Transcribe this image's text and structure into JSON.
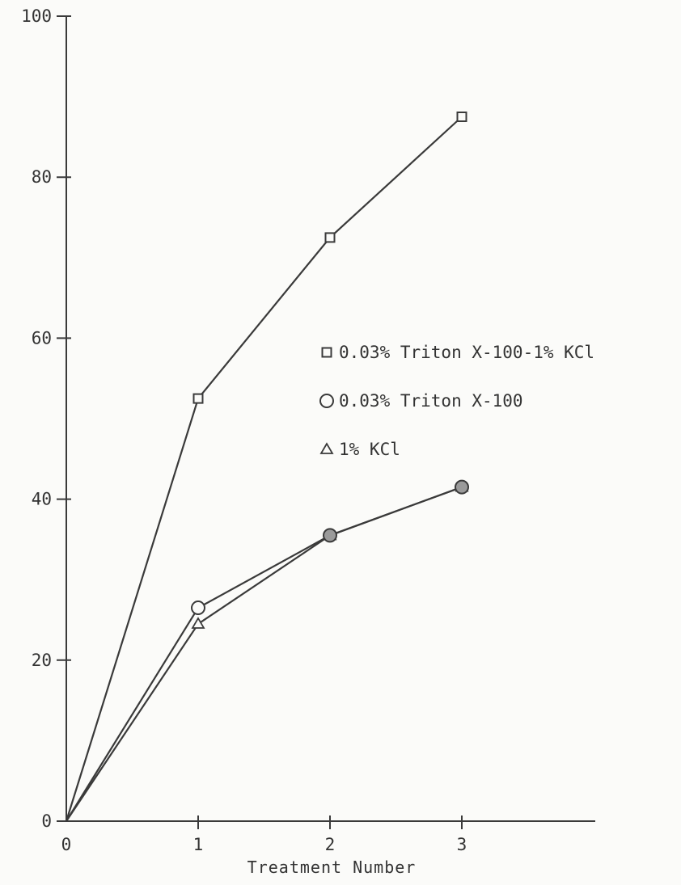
{
  "chart_data": {
    "type": "line",
    "title": "",
    "xlabel": "Treatment Number",
    "ylabel": "",
    "xlim": [
      0,
      4
    ],
    "ylim": [
      0,
      100
    ],
    "x_ticks": [
      "0",
      "1",
      "2",
      "3"
    ],
    "y_ticks": [
      "0",
      "20",
      "40",
      "60",
      "80",
      "100"
    ],
    "grid": false,
    "legend_position": "right-center",
    "series": [
      {
        "name": "0.03% Triton X-100-1% KCl",
        "marker": "square",
        "points": [
          [
            0,
            0
          ],
          [
            1,
            52.5
          ],
          [
            2,
            72.5
          ],
          [
            3,
            87.5
          ]
        ]
      },
      {
        "name": "0.03% Triton X-100",
        "marker": "circle",
        "points": [
          [
            0,
            0
          ],
          [
            1,
            26.5
          ],
          [
            2,
            35.5
          ],
          [
            3,
            41.5
          ]
        ]
      },
      {
        "name": "1% KCl",
        "marker": "triangle",
        "points": [
          [
            0,
            0
          ],
          [
            1,
            24.5
          ],
          [
            2,
            35.5
          ],
          [
            3,
            41.5
          ]
        ]
      }
    ]
  }
}
